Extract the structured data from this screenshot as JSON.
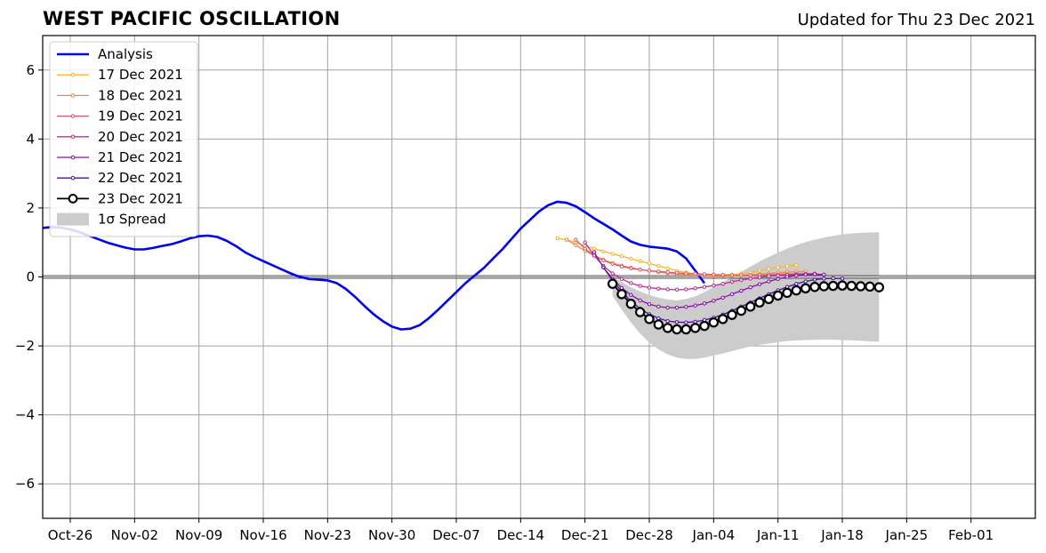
{
  "header": {
    "title": "WEST PACIFIC OSCILLATION",
    "updated": "Updated for Thu 23 Dec 2021"
  },
  "chart_data": {
    "type": "line",
    "title": "WEST PACIFIC OSCILLATION",
    "xlabel": "",
    "ylabel": "",
    "x_range": [
      "2021-10-23",
      "2022-02-08"
    ],
    "ylim": [
      -7,
      7
    ],
    "yticks": [
      -6,
      -4,
      -2,
      0,
      2,
      4,
      6
    ],
    "xticks": [
      {
        "date": "2021-10-26",
        "label": "Oct-26"
      },
      {
        "date": "2021-11-02",
        "label": "Nov-02"
      },
      {
        "date": "2021-11-09",
        "label": "Nov-09"
      },
      {
        "date": "2021-11-16",
        "label": "Nov-16"
      },
      {
        "date": "2021-11-23",
        "label": "Nov-23"
      },
      {
        "date": "2021-11-30",
        "label": "Nov-30"
      },
      {
        "date": "2021-12-07",
        "label": "Dec-07"
      },
      {
        "date": "2021-12-14",
        "label": "Dec-14"
      },
      {
        "date": "2021-12-21",
        "label": "Dec-21"
      },
      {
        "date": "2021-12-28",
        "label": "Dec-28"
      },
      {
        "date": "2022-01-04",
        "label": "Jan-04"
      },
      {
        "date": "2022-01-11",
        "label": "Jan-11"
      },
      {
        "date": "2022-01-18",
        "label": "Jan-18"
      },
      {
        "date": "2022-01-25",
        "label": "Jan-25"
      },
      {
        "date": "2022-02-01",
        "label": "Feb-01"
      }
    ],
    "grid": true,
    "legend_position": "top-left",
    "colors": {
      "analysis": "#0000ee",
      "spread": "#cccccc",
      "f17": "#fbb32c",
      "f18": "#ef8a45",
      "f19": "#d95a6f",
      "f20": "#b7308f",
      "f21": "#8a10a8",
      "f22": "#4b0f96",
      "f23": "#000000"
    },
    "analysis": {
      "name": "Analysis",
      "start": "2021-10-23",
      "values": [
        1.42,
        1.45,
        1.43,
        1.38,
        1.3,
        1.2,
        1.1,
        1.0,
        0.92,
        0.85,
        0.8,
        0.8,
        0.84,
        0.9,
        0.95,
        1.03,
        1.12,
        1.18,
        1.2,
        1.16,
        1.05,
        0.9,
        0.72,
        0.58,
        0.46,
        0.34,
        0.22,
        0.1,
        0.0,
        -0.06,
        -0.08,
        -0.1,
        -0.18,
        -0.35,
        -0.58,
        -0.84,
        -1.08,
        -1.28,
        -1.44,
        -1.52,
        -1.5,
        -1.4,
        -1.2,
        -0.96,
        -0.7,
        -0.44,
        -0.18,
        0.04,
        0.26,
        0.53,
        0.8,
        1.1,
        1.4,
        1.65,
        1.9,
        2.08,
        2.18,
        2.15,
        2.05,
        1.88,
        1.7,
        1.54,
        1.38,
        1.2,
        1.03,
        0.93,
        0.88,
        0.85,
        0.82,
        0.74,
        0.54,
        0.18,
        -0.18
      ]
    },
    "spread": {
      "name": "1σ Spread",
      "start": "2021-12-24",
      "upper": [
        0.0,
        -0.15,
        -0.3,
        -0.42,
        -0.52,
        -0.6,
        -0.65,
        -0.68,
        -0.64,
        -0.56,
        -0.44,
        -0.3,
        -0.16,
        0.0,
        0.15,
        0.3,
        0.45,
        0.58,
        0.7,
        0.82,
        0.92,
        1.01,
        1.08,
        1.14,
        1.19,
        1.23,
        1.26,
        1.28,
        1.29,
        1.3
      ],
      "lower": [
        -0.55,
        -0.95,
        -1.32,
        -1.64,
        -1.9,
        -2.1,
        -2.25,
        -2.34,
        -2.38,
        -2.38,
        -2.34,
        -2.28,
        -2.22,
        -2.15,
        -2.08,
        -2.02,
        -1.97,
        -1.93,
        -1.89,
        -1.86,
        -1.84,
        -1.83,
        -1.82,
        -1.82,
        -1.82,
        -1.83,
        -1.84,
        -1.85,
        -1.87,
        -1.88
      ]
    },
    "series": [
      {
        "name": "17 Dec 2021",
        "start": "2021-12-18",
        "color_key": "f17",
        "values": [
          1.12,
          1.08,
          1.0,
          0.9,
          0.82,
          0.74,
          0.67,
          0.6,
          0.53,
          0.46,
          0.39,
          0.32,
          0.25,
          0.18,
          0.13,
          0.09,
          0.07,
          0.06,
          0.06,
          0.07,
          0.09,
          0.13,
          0.18,
          0.23,
          0.28,
          0.31,
          0.34
        ]
      },
      {
        "name": "18 Dec 2021",
        "start": "2021-12-19",
        "color_key": "f18",
        "values": [
          1.08,
          0.92,
          0.76,
          0.62,
          0.5,
          0.4,
          0.33,
          0.27,
          0.22,
          0.18,
          0.14,
          0.11,
          0.09,
          0.07,
          0.05,
          0.04,
          0.03,
          0.03,
          0.04,
          0.05,
          0.06,
          0.08,
          0.1,
          0.12,
          0.14,
          0.15,
          0.16
        ]
      },
      {
        "name": "19 Dec 2021",
        "start": "2021-12-20",
        "color_key": "f19",
        "values": [
          1.08,
          0.82,
          0.62,
          0.48,
          0.38,
          0.3,
          0.25,
          0.21,
          0.18,
          0.16,
          0.14,
          0.12,
          0.1,
          0.09,
          0.08,
          0.07,
          0.06,
          0.05,
          0.05,
          0.05,
          0.05,
          0.06,
          0.07,
          0.08,
          0.09,
          0.1,
          0.1
        ]
      },
      {
        "name": "20 Dec 2021",
        "start": "2021-12-21",
        "color_key": "f20",
        "values": [
          1.0,
          0.62,
          0.32,
          0.1,
          -0.06,
          -0.18,
          -0.26,
          -0.31,
          -0.34,
          -0.36,
          -0.37,
          -0.36,
          -0.33,
          -0.29,
          -0.25,
          -0.2,
          -0.14,
          -0.09,
          -0.05,
          -0.01,
          0.02,
          0.04,
          0.06,
          0.07,
          0.07,
          0.07,
          0.06
        ]
      },
      {
        "name": "21 Dec 2021",
        "start": "2021-12-22",
        "color_key": "f21",
        "values": [
          0.72,
          0.28,
          -0.06,
          -0.32,
          -0.52,
          -0.68,
          -0.79,
          -0.86,
          -0.89,
          -0.89,
          -0.87,
          -0.83,
          -0.77,
          -0.69,
          -0.6,
          -0.5,
          -0.4,
          -0.3,
          -0.21,
          -0.13,
          -0.06,
          0.0,
          0.04,
          0.07,
          0.08,
          0.07
        ]
      },
      {
        "name": "22 Dec 2021",
        "start": "2021-12-23",
        "color_key": "f22",
        "values": [
          0.28,
          -0.1,
          -0.42,
          -0.7,
          -0.92,
          -1.08,
          -1.2,
          -1.28,
          -1.31,
          -1.32,
          -1.3,
          -1.25,
          -1.18,
          -1.09,
          -0.98,
          -0.86,
          -0.74,
          -0.62,
          -0.5,
          -0.39,
          -0.29,
          -0.2,
          -0.13,
          -0.08,
          -0.05,
          -0.04,
          -0.05
        ]
      },
      {
        "name": "23 Dec 2021",
        "start": "2021-12-24",
        "color_key": "f23",
        "values": [
          -0.2,
          -0.5,
          -0.78,
          -1.02,
          -1.22,
          -1.38,
          -1.48,
          -1.52,
          -1.52,
          -1.48,
          -1.42,
          -1.32,
          -1.22,
          -1.1,
          -0.98,
          -0.86,
          -0.74,
          -0.64,
          -0.54,
          -0.46,
          -0.39,
          -0.33,
          -0.29,
          -0.27,
          -0.26,
          -0.25,
          -0.26,
          -0.27,
          -0.28,
          -0.3
        ]
      }
    ],
    "legend": [
      {
        "label": "Analysis",
        "kind": "analysis"
      },
      {
        "label": "17 Dec 2021",
        "kind": "f17"
      },
      {
        "label": "18 Dec 2021",
        "kind": "f18"
      },
      {
        "label": "19 Dec 2021",
        "kind": "f19"
      },
      {
        "label": "20 Dec 2021",
        "kind": "f20"
      },
      {
        "label": "21 Dec 2021",
        "kind": "f21"
      },
      {
        "label": "22 Dec 2021",
        "kind": "f22"
      },
      {
        "label": "23 Dec 2021",
        "kind": "f23"
      },
      {
        "label": "1σ Spread",
        "kind": "spread"
      }
    ]
  }
}
